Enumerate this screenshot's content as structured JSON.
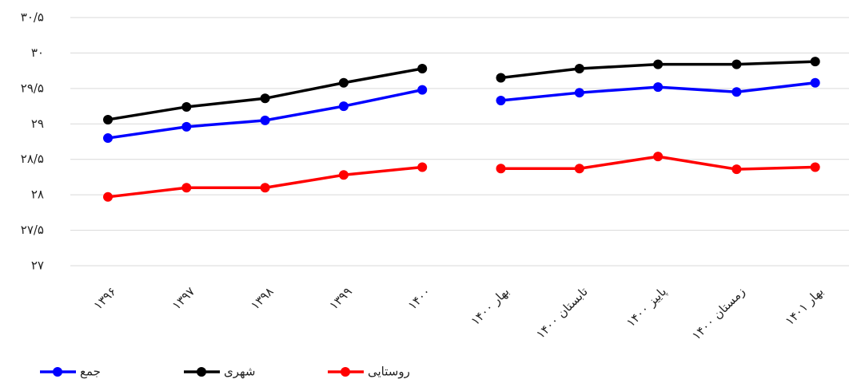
{
  "chart_data": {
    "type": "line",
    "categories": [
      "۱۳۹۶",
      "۱۳۹۷",
      "۱۳۹۸",
      "۱۳۹۹",
      "۱۴۰۰",
      "بهار ۱۴۰۰",
      "تابستان ۱۴۰۰",
      "پاییز ۱۴۰۰",
      "زمستان ۱۴۰۰",
      "بهار ۱۴۰۱"
    ],
    "series": [
      {
        "name": "جمع",
        "color": "#0000ff",
        "values": [
          28.8,
          28.96,
          29.05,
          29.25,
          29.48,
          29.33,
          29.44,
          29.52,
          29.45,
          29.58
        ]
      },
      {
        "name": "شهری",
        "color": "#000000",
        "values": [
          29.06,
          29.24,
          29.36,
          29.58,
          29.78,
          29.65,
          29.78,
          29.84,
          29.84,
          29.88
        ]
      },
      {
        "name": "روستایی",
        "color": "#ff0000",
        "values": [
          27.97,
          28.1,
          28.1,
          28.28,
          28.39,
          28.37,
          28.37,
          28.54,
          28.36,
          28.39
        ]
      }
    ],
    "line_breaks_after": [
      4
    ],
    "ylim": [
      27,
      30.5
    ],
    "yticks": [
      {
        "value": 27,
        "label": "۲۷"
      },
      {
        "value": 27.5,
        "label": "۲۷/۵"
      },
      {
        "value": 28,
        "label": "۲۸"
      },
      {
        "value": 28.5,
        "label": "۲۸/۵"
      },
      {
        "value": 29,
        "label": "۲۹"
      },
      {
        "value": 29.5,
        "label": "۲۹/۵"
      },
      {
        "value": 30,
        "label": "۳۰"
      },
      {
        "value": 30.5,
        "label": "۳۰/۵"
      }
    ],
    "grid": true,
    "legend": "bottom-left"
  }
}
